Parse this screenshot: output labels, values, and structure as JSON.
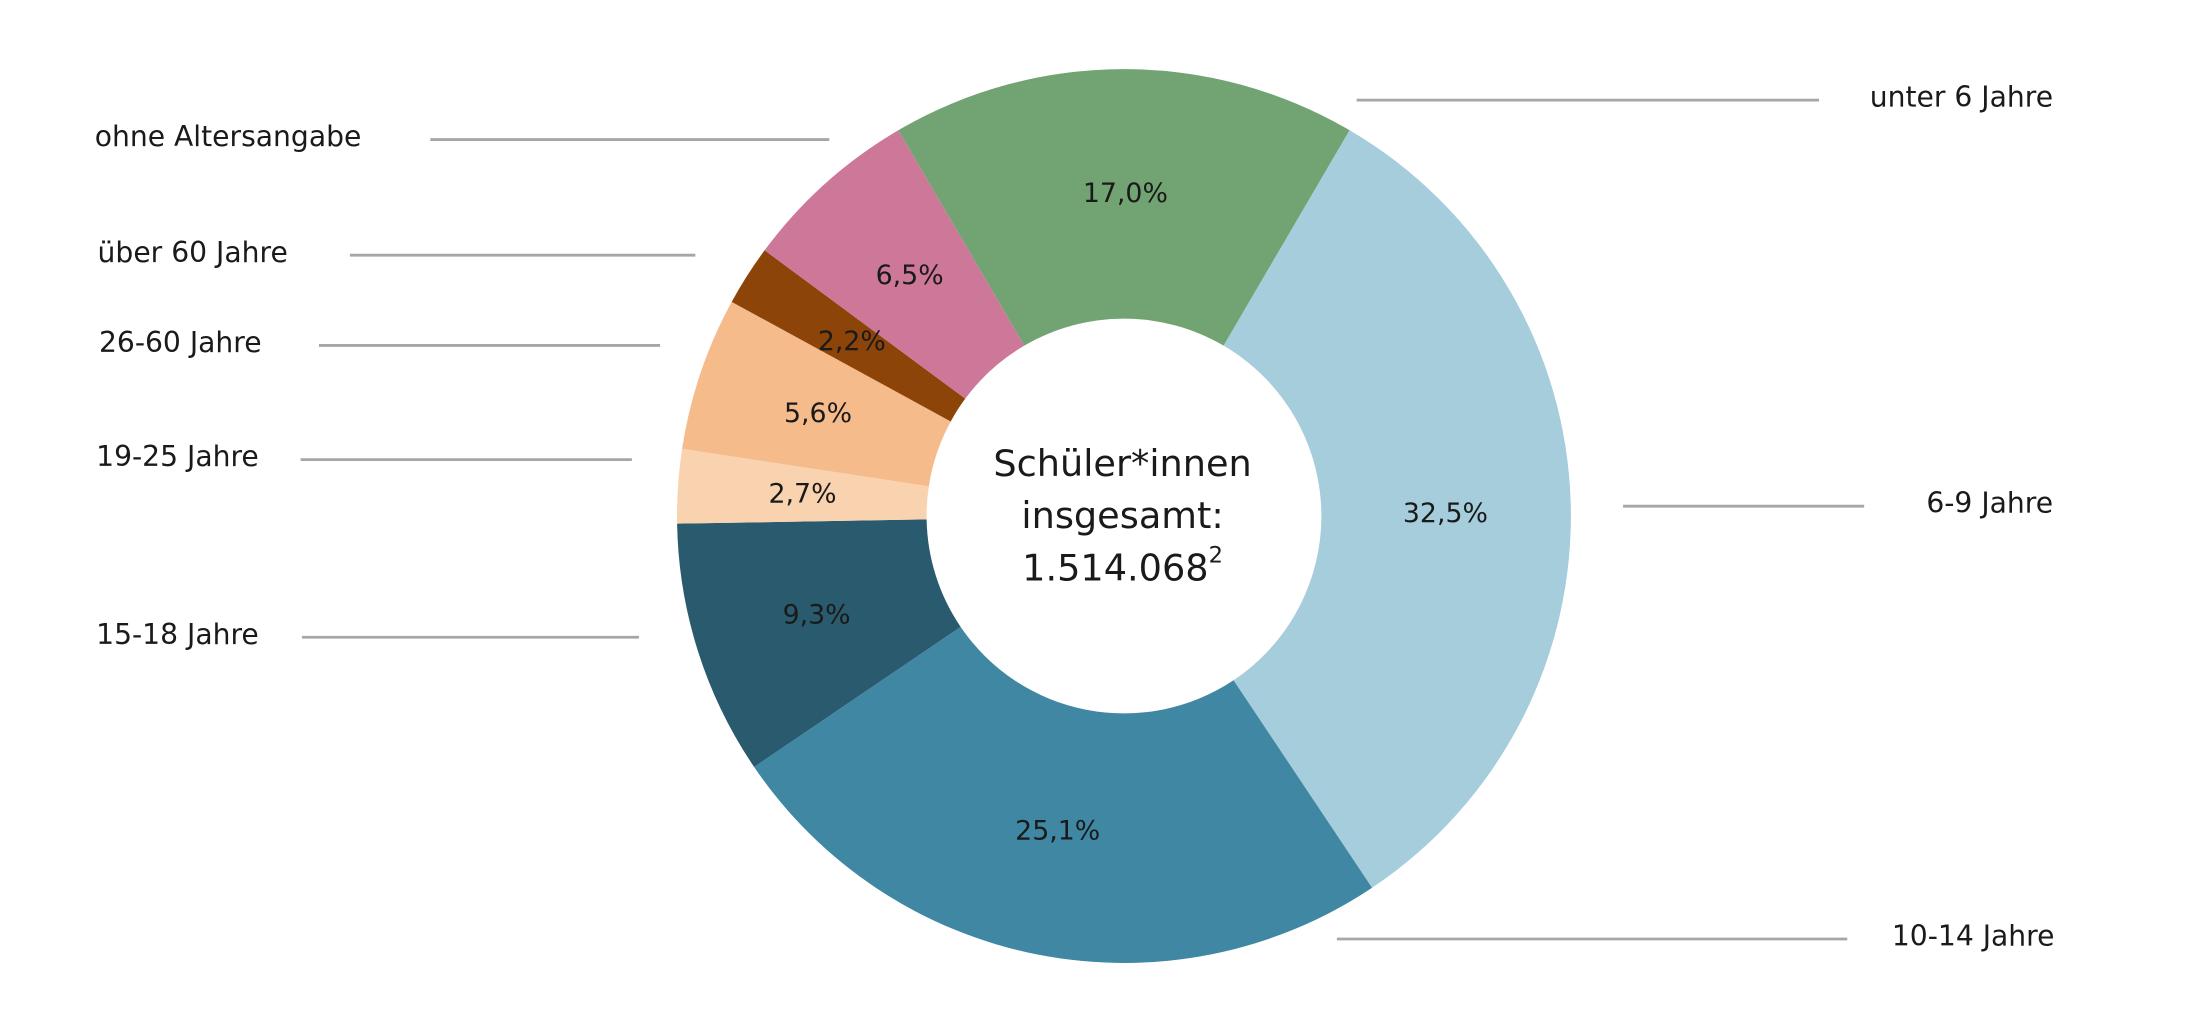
{
  "chart_data": {
    "type": "donut",
    "categories": [
      "unter 6 Jahre",
      "6-9 Jahre",
      "10-14 Jahre",
      "15-18 Jahre",
      "19-25 Jahre",
      "26-60 Jahre",
      "über 60 Jahre",
      "ohne Altersangabe"
    ],
    "values": [
      17.0,
      32.5,
      25.1,
      9.3,
      2.7,
      5.6,
      2.2,
      6.5
    ],
    "value_labels": [
      "17,0%",
      "32,5%",
      "25,1%",
      "9,3%",
      "2,7%",
      "5,6%",
      "2,2%",
      "6,5%"
    ],
    "colors": [
      "#72a373",
      "#a5cddc",
      "#3f87a3",
      "#2a5a6e",
      "#f9d2b0",
      "#f6bb8b",
      "#8d4409",
      "#cd7899"
    ],
    "center_label": [
      "Schüler*innen",
      "insgesamt:",
      "1.514.068"
    ],
    "center_footnote": "2"
  }
}
